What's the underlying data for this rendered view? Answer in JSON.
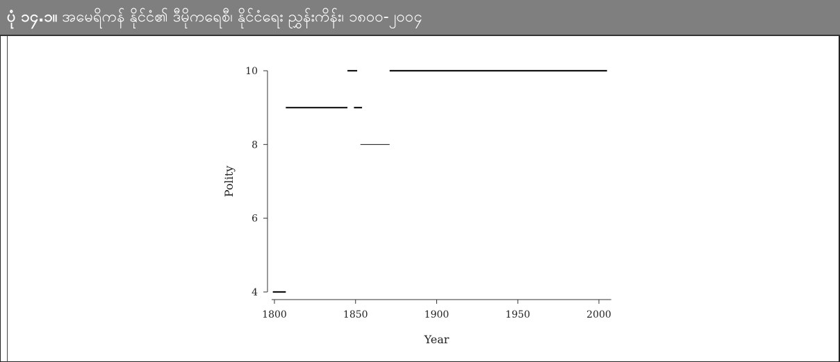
{
  "figure": {
    "title_number": "ပုံ ၁၄.၁။",
    "title_text": " အမေရိကန် နိုင်ငံ၏ ဒီမိုကရေစီ၊ နိုင်ငံရေး ညွှန်းကိန်း၊ ၁၈၀၀-၂၀၀၄"
  },
  "chart_data": {
    "type": "line",
    "xlabel": "Year",
    "ylabel": "Polity",
    "xlim": [
      1800,
      2005
    ],
    "ylim": [
      4,
      10
    ],
    "xticks": [
      1800,
      1850,
      1900,
      1950,
      2000
    ],
    "yticks": [
      4,
      6,
      8,
      10
    ],
    "grid": false,
    "segments": [
      {
        "x_start": 1799,
        "x_end": 1807,
        "y": 4,
        "weight": "bold"
      },
      {
        "x_start": 1807,
        "x_end": 1845,
        "y": 9,
        "weight": "bold"
      },
      {
        "x_start": 1845,
        "x_end": 1851,
        "y": 10,
        "weight": "bold"
      },
      {
        "x_start": 1849,
        "x_end": 1854,
        "y": 9,
        "weight": "bold"
      },
      {
        "x_start": 1853,
        "x_end": 1871,
        "y": 8,
        "weight": "thin"
      },
      {
        "x_start": 1871,
        "x_end": 2005,
        "y": 10,
        "weight": "bold"
      }
    ]
  }
}
